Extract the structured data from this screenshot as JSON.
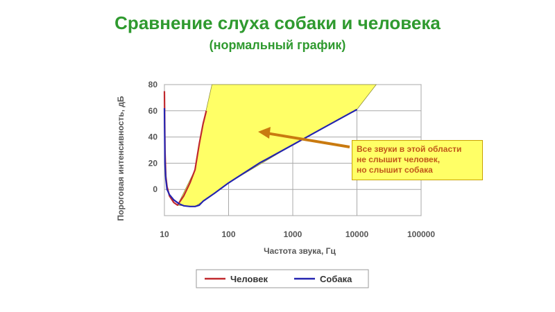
{
  "title": "Сравнение слуха собаки и человека",
  "subtitle": "(нормальный график)",
  "annotation": {
    "lines": [
      "Все звуки в этой области",
      "не слышит человек,",
      "но слышит собака"
    ]
  },
  "chart_data": {
    "type": "line",
    "title": "Сравнение слуха собаки и человека",
    "subtitle": "(нормальный график)",
    "xlabel": "Частота звука, Гц",
    "ylabel": "Пороговая интенсивность, дБ",
    "xscale": "log",
    "xlim": [
      10,
      100000
    ],
    "ylim": [
      -20,
      80
    ],
    "x_ticks": [
      "10",
      "100",
      "1000",
      "10000",
      "100000"
    ],
    "y_ticks": [
      "0",
      "20",
      "40",
      "60",
      "80"
    ],
    "grid": true,
    "legend": "bottom",
    "series": [
      {
        "name": "Человек",
        "color": "#c0282d",
        "points": [
          [
            10,
            75
          ],
          [
            10.2,
            30
          ],
          [
            10.5,
            10
          ],
          [
            11,
            2
          ],
          [
            12,
            -5
          ],
          [
            14,
            -10
          ],
          [
            16,
            -12
          ],
          [
            20,
            -5
          ],
          [
            25,
            5
          ],
          [
            30,
            15
          ],
          [
            35,
            35
          ],
          [
            40,
            50
          ],
          [
            45,
            60
          ]
        ]
      },
      {
        "name": "Собака",
        "color": "#2424b0",
        "points": [
          [
            10,
            62
          ],
          [
            10.2,
            20
          ],
          [
            10.5,
            8
          ],
          [
            11,
            0
          ],
          [
            12,
            -4
          ],
          [
            14,
            -8
          ],
          [
            17,
            -11
          ],
          [
            20,
            -12.5
          ],
          [
            25,
            -13
          ],
          [
            30,
            -13
          ],
          [
            35,
            -12
          ],
          [
            40,
            -9
          ],
          [
            60,
            -3
          ],
          [
            100,
            5
          ],
          [
            300,
            20
          ],
          [
            1000,
            34
          ],
          [
            3000,
            47
          ],
          [
            10000,
            61
          ]
        ]
      }
    ],
    "region": {
      "color": "#ffff66",
      "points": [
        [
          16,
          -12
        ],
        [
          30,
          15
        ],
        [
          40,
          50
        ],
        [
          55,
          80
        ],
        [
          20000,
          80
        ],
        [
          10000,
          61
        ],
        [
          1000,
          34
        ],
        [
          100,
          5
        ],
        [
          40,
          -9
        ],
        [
          30,
          -13
        ],
        [
          20,
          -12.5
        ]
      ]
    },
    "annotation": "Все звуки в этой области не слышит человек, но слышит собака",
    "arrow_color": "#c97a10"
  }
}
